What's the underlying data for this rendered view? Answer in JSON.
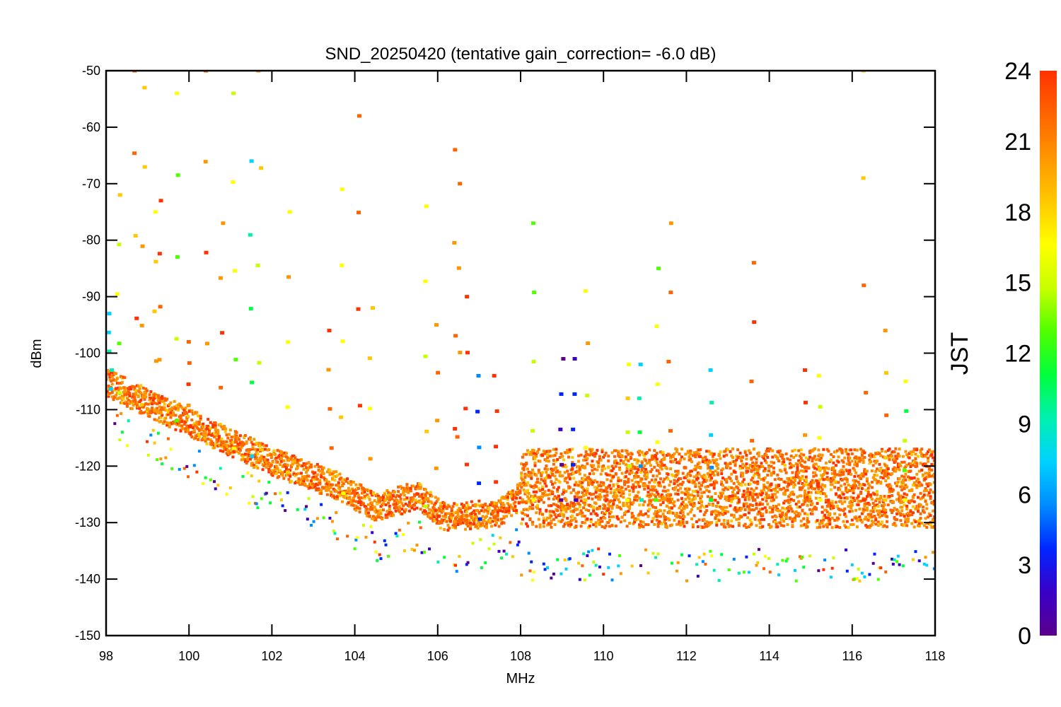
{
  "chart_data": {
    "type": "scatter",
    "title": "SND_20250420 (tentative gain_correction= -6.0 dB)",
    "xlabel": "MHz",
    "ylabel": "dBm",
    "xlim": [
      98,
      118
    ],
    "ylim": [
      -150,
      -50
    ],
    "x_ticks": [
      "98",
      "100",
      "102",
      "104",
      "106",
      "108",
      "110",
      "112",
      "114",
      "116",
      "118"
    ],
    "y_ticks": [
      "-50",
      "-60",
      "-70",
      "-80",
      "-90",
      "-100",
      "-110",
      "-120",
      "-130",
      "-140",
      "-150"
    ],
    "colorbar": {
      "label": "JST",
      "range": [
        0,
        24
      ],
      "ticks": [
        "24",
        "21",
        "18",
        "15",
        "12",
        "9",
        "6",
        "3",
        "0"
      ],
      "colormap": "rainbow",
      "colors": [
        "#5a008c",
        "#3a00c8",
        "#0026ff",
        "#008cff",
        "#00d2ff",
        "#00f0b0",
        "#00ff3c",
        "#50ff00",
        "#c8ff00",
        "#ffff00",
        "#ffc800",
        "#ff9600",
        "#ff6400",
        "#ff3200"
      ]
    },
    "grid": false,
    "noise_floor": [
      {
        "x": 98.0,
        "y": -106
      },
      {
        "x": 100.0,
        "y": -113
      },
      {
        "x": 102.0,
        "y": -120
      },
      {
        "x": 103.5,
        "y": -124
      },
      {
        "x": 104.5,
        "y": -128
      },
      {
        "x": 105.5,
        "y": -126
      },
      {
        "x": 106.2,
        "y": -130
      },
      {
        "x": 107.5,
        "y": -129
      },
      {
        "x": 108.0,
        "y": -126
      },
      {
        "x": 112.0,
        "y": -126
      },
      {
        "x": 118.0,
        "y": -126
      }
    ],
    "peaks": [
      {
        "x": 98.1,
        "top": -93,
        "hour": 9
      },
      {
        "x": 98.3,
        "top": -72,
        "hour": 15
      },
      {
        "x": 98.7,
        "top": -50,
        "hour": 21
      },
      {
        "x": 98.9,
        "top": -53,
        "hour": 20
      },
      {
        "x": 99.2,
        "top": -75,
        "hour": 20
      },
      {
        "x": 99.3,
        "top": -73,
        "hour": 21
      },
      {
        "x": 99.7,
        "top": -54,
        "hour": 15
      },
      {
        "x": 100.0,
        "top": -98,
        "hour": 23
      },
      {
        "x": 100.4,
        "top": -50,
        "hour": 21
      },
      {
        "x": 100.8,
        "top": -77,
        "hour": 23
      },
      {
        "x": 101.1,
        "top": -54,
        "hour": 15
      },
      {
        "x": 101.5,
        "top": -66,
        "hour": 9
      },
      {
        "x": 101.7,
        "top": -50,
        "hour": 17
      },
      {
        "x": 102.4,
        "top": -75,
        "hour": 17
      },
      {
        "x": 103.4,
        "top": -96,
        "hour": 22
      },
      {
        "x": 103.7,
        "top": -71,
        "hour": 18
      },
      {
        "x": 104.1,
        "top": -58,
        "hour": 23
      },
      {
        "x": 104.4,
        "top": -92,
        "hour": 20
      },
      {
        "x": 105.7,
        "top": -74,
        "hour": 15
      },
      {
        "x": 106.0,
        "top": -95,
        "hour": 22
      },
      {
        "x": 106.4,
        "top": -64,
        "hour": 22
      },
      {
        "x": 106.5,
        "top": -70,
        "hour": 22
      },
      {
        "x": 106.7,
        "top": -90,
        "hour": 23
      },
      {
        "x": 107.0,
        "top": -104,
        "hour": 3
      },
      {
        "x": 107.4,
        "top": -104,
        "hour": 23
      },
      {
        "x": 108.3,
        "top": -77,
        "hour": 15
      },
      {
        "x": 109.0,
        "top": -101,
        "hour": 1
      },
      {
        "x": 109.3,
        "top": -101,
        "hour": 3
      },
      {
        "x": 109.6,
        "top": -89,
        "hour": 18
      },
      {
        "x": 110.6,
        "top": -102,
        "hour": 16
      },
      {
        "x": 110.9,
        "top": -102,
        "hour": 9
      },
      {
        "x": 111.3,
        "top": -85,
        "hour": 14
      },
      {
        "x": 111.6,
        "top": -77,
        "hour": 23
      },
      {
        "x": 112.6,
        "top": -103,
        "hour": 9
      },
      {
        "x": 113.6,
        "top": -84,
        "hour": 21
      },
      {
        "x": 114.9,
        "top": -103,
        "hour": 23
      },
      {
        "x": 115.2,
        "top": -104,
        "hour": 16
      },
      {
        "x": 116.3,
        "top": -50,
        "hour": 21
      },
      {
        "x": 116.8,
        "top": -96,
        "hour": 20
      },
      {
        "x": 117.3,
        "top": -105,
        "hour": 14
      }
    ]
  }
}
